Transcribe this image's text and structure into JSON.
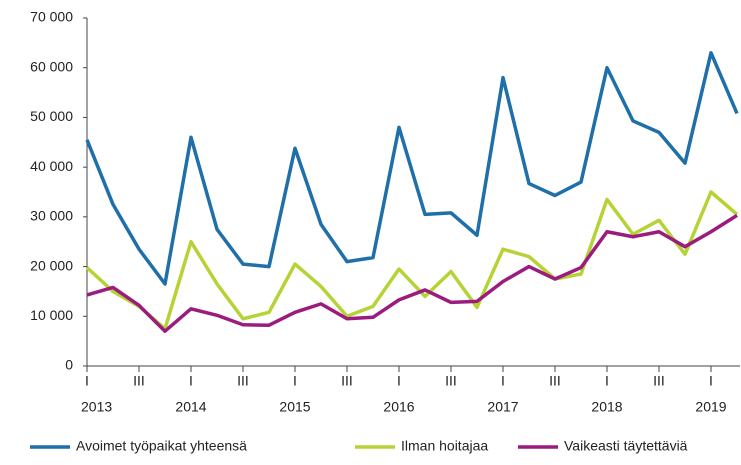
{
  "chart_data": {
    "type": "line",
    "categories": [
      "I",
      null,
      "III",
      null,
      "I",
      null,
      "III",
      null,
      "I",
      null,
      "III",
      null,
      "I",
      null,
      "III",
      null,
      "I",
      null,
      "III",
      null,
      "I",
      null,
      "III",
      null,
      "I",
      null
    ],
    "year_labels": [
      "2013",
      "2014",
      "2015",
      "2016",
      "2017",
      "2018",
      "2019"
    ],
    "series": [
      {
        "name": "Avoimet työpaikat yhteensä",
        "color": "#1f6fa8",
        "values": [
          45500,
          32500,
          23500,
          16500,
          46000,
          27500,
          20500,
          20000,
          43800,
          28500,
          21000,
          21800,
          48000,
          30500,
          30800,
          26300,
          58000,
          36700,
          34300,
          37000,
          60000,
          49300,
          47000,
          40800,
          63000,
          50800
        ]
      },
      {
        "name": "Ilman hoitajaa",
        "color": "#b5d334",
        "values": [
          19800,
          15000,
          12000,
          7500,
          25000,
          16500,
          9500,
          10800,
          20500,
          16000,
          10000,
          12000,
          19500,
          14000,
          19000,
          11800,
          23500,
          22000,
          17500,
          18500,
          33500,
          26500,
          29300,
          22500,
          35000,
          30500
        ]
      },
      {
        "name": "Vaikeasti täytettäviä",
        "color": "#9b1b7e",
        "values": [
          14300,
          15800,
          12200,
          7000,
          11500,
          10200,
          8300,
          8200,
          10800,
          12500,
          9500,
          9800,
          13300,
          15300,
          12800,
          13000,
          17000,
          20000,
          17500,
          19800,
          27000,
          26000,
          27000,
          24000,
          27000,
          30300
        ]
      }
    ],
    "ylim": [
      0,
      70000
    ],
    "yticks": [
      0,
      {
        "value": 10000,
        "label": "10 000"
      },
      {
        "value": 20000,
        "label": "20 000"
      },
      {
        "value": 30000,
        "label": "30 000"
      },
      {
        "value": 40000,
        "label": "40 000"
      },
      {
        "value": 50000,
        "label": "50 000"
      },
      {
        "value": 60000,
        "label": "60 000"
      },
      {
        "value": 70000,
        "label": "70 000"
      }
    ],
    "grid": false,
    "legend": "bottom"
  }
}
